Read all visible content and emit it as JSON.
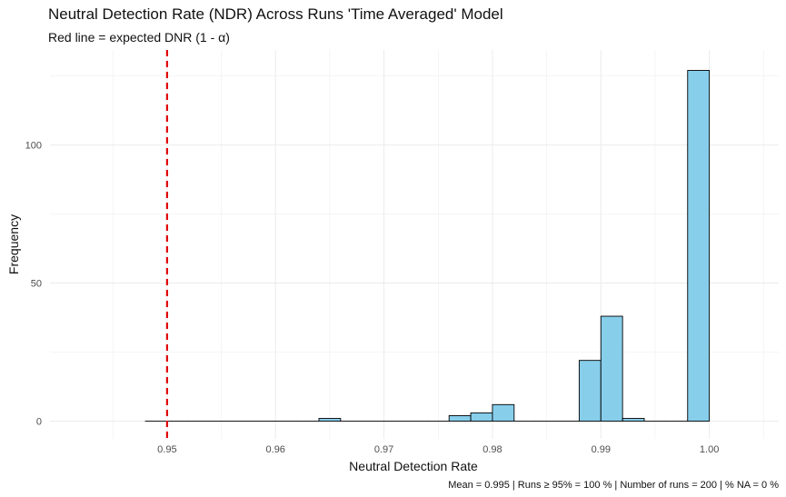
{
  "chart_data": {
    "type": "bar",
    "title": "Neutral Detection Rate (NDR) Across Runs 'Time Averaged' Model",
    "subtitle": "Red line = expected DNR (1 - α)",
    "xlabel": "Neutral Detection Rate",
    "ylabel": "Frequency",
    "caption": "Mean = 0.995 | Runs ≥ 95% = 100 % | Number of runs = 200 | % NA = 0 %",
    "xlim": [
      0.9392,
      1.0064
    ],
    "ylim": [
      -6.4,
      134.4
    ],
    "x_ticks": [
      0.95,
      0.96,
      0.97,
      0.98,
      0.99,
      1.0
    ],
    "x_tick_labels": [
      "0.95",
      "0.96",
      "0.97",
      "0.98",
      "0.99",
      "1.00"
    ],
    "y_ticks": [
      0,
      50,
      100
    ],
    "y_tick_labels": [
      "0",
      "50",
      "100"
    ],
    "bin_width": 0.002,
    "bins": [
      {
        "x": 0.949,
        "count": 0
      },
      {
        "x": 0.951,
        "count": 0
      },
      {
        "x": 0.953,
        "count": 0
      },
      {
        "x": 0.955,
        "count": 0
      },
      {
        "x": 0.957,
        "count": 0
      },
      {
        "x": 0.959,
        "count": 0
      },
      {
        "x": 0.961,
        "count": 0
      },
      {
        "x": 0.963,
        "count": 0
      },
      {
        "x": 0.965,
        "count": 1
      },
      {
        "x": 0.967,
        "count": 0
      },
      {
        "x": 0.969,
        "count": 0
      },
      {
        "x": 0.971,
        "count": 0
      },
      {
        "x": 0.973,
        "count": 0
      },
      {
        "x": 0.975,
        "count": 0
      },
      {
        "x": 0.977,
        "count": 2
      },
      {
        "x": 0.979,
        "count": 3
      },
      {
        "x": 0.981,
        "count": 6
      },
      {
        "x": 0.983,
        "count": 0
      },
      {
        "x": 0.985,
        "count": 0
      },
      {
        "x": 0.987,
        "count": 0
      },
      {
        "x": 0.989,
        "count": 22
      },
      {
        "x": 0.991,
        "count": 38
      },
      {
        "x": 0.993,
        "count": 1
      },
      {
        "x": 0.995,
        "count": 0
      },
      {
        "x": 0.997,
        "count": 0
      },
      {
        "x": 0.999,
        "count": 127
      }
    ],
    "reference_line": {
      "x": 0.95,
      "style": "dashed"
    },
    "colors": {
      "bar_fill": "#87ceeb",
      "bar_stroke": "#000000",
      "reference": "#e00000",
      "grid": "#ebebeb"
    },
    "grid": true,
    "legend": "none"
  }
}
